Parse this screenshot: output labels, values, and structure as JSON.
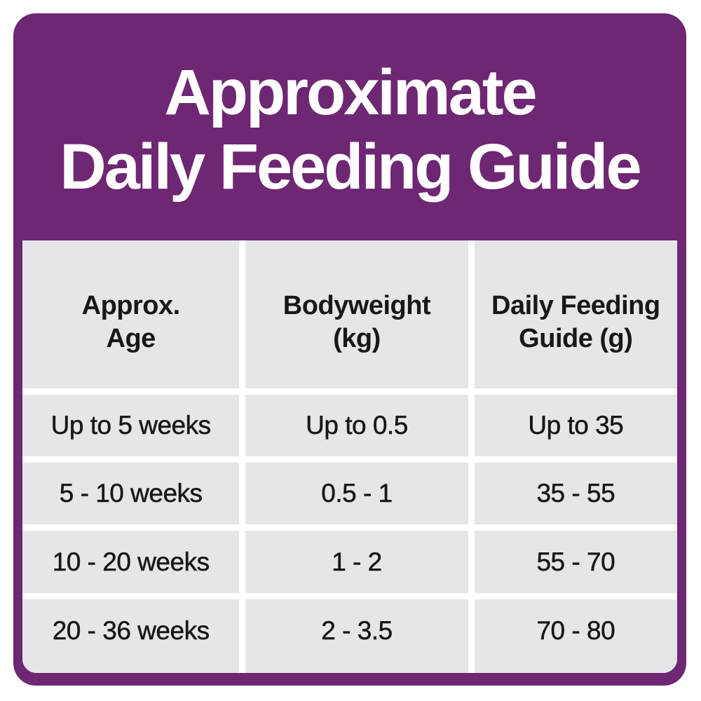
{
  "header": {
    "title_line_1": "Approximate",
    "title_line_2": "Daily Feeding Guide"
  },
  "table": {
    "header_display": [
      "Approx.\nAge",
      "Bodyweight\n(kg)",
      "Daily Feeding\nGuide (g)"
    ]
  },
  "chart_data": {
    "type": "table",
    "title": "Approximate Daily Feeding Guide",
    "columns": [
      "Approx. Age",
      "Bodyweight (kg)",
      "Daily Feeding Guide (g)"
    ],
    "rows": [
      [
        "Up to 5 weeks",
        "Up to 0.5",
        "Up to 35"
      ],
      [
        "5 - 10 weeks",
        "0.5 - 1",
        "35 - 55"
      ],
      [
        "10 - 20 weeks",
        "1 - 2",
        "55 - 70"
      ],
      [
        "20 - 36 weeks",
        "2 - 3.5",
        "70 - 80"
      ]
    ]
  },
  "colors": {
    "brand_purple": "#6e2773",
    "cell_gray": "#e6e6e8",
    "gutter_white": "#ffffff",
    "text_dark": "#17171c",
    "title_white": "#ffffff"
  }
}
